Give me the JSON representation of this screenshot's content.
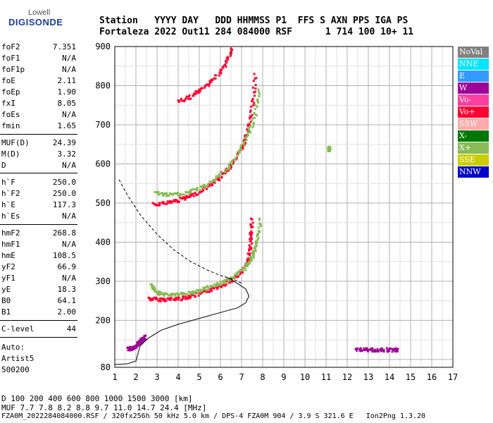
{
  "logo": {
    "top": "Lowell",
    "main": "DIGISONDE"
  },
  "header": {
    "line1": "Station   YYYY DAY   DDD HHMMSS P1  FFS S AXN PPS IGA PS",
    "line2": "Fortaleza 2022 Out11 284 084000 RSF      1 714 100 10+ 11"
  },
  "params": [
    {
      "k": "foF2",
      "v": "7.351"
    },
    {
      "k": "foF1",
      "v": "N/A"
    },
    {
      "k": "foF1p",
      "v": "N/A"
    },
    {
      "k": "foE",
      "v": "2.11"
    },
    {
      "k": "foEp",
      "v": "1.90"
    },
    {
      "k": "fxI",
      "v": "8.05"
    },
    {
      "k": "foEs",
      "v": "N/A"
    },
    {
      "k": "fmin",
      "v": "1.65"
    },
    {
      "k": "MUF(D)",
      "v": "24.39"
    },
    {
      "k": "M(D)",
      "v": "3.32"
    },
    {
      "k": "D",
      "v": "N/A"
    },
    {
      "k": "h`F",
      "v": "250.0"
    },
    {
      "k": "h`F2",
      "v": "250.0"
    },
    {
      "k": "h`E",
      "v": "117.3"
    },
    {
      "k": "h`Es",
      "v": "N/A"
    },
    {
      "k": "hmF2",
      "v": "268.8"
    },
    {
      "k": "hmF1",
      "v": "N/A"
    },
    {
      "k": "hmE",
      "v": "108.5"
    },
    {
      "k": "yF2",
      "v": "66.9"
    },
    {
      "k": "yF1",
      "v": "N/A"
    },
    {
      "k": "yE",
      "v": "18.3"
    },
    {
      "k": "B0",
      "v": "64.1"
    },
    {
      "k": "B1",
      "v": "2.00"
    },
    {
      "k": "C-level",
      "v": "44"
    }
  ],
  "auto": {
    "line1": "Auto:",
    "line2": "Artist5",
    "line3": "500200"
  },
  "legend": [
    {
      "label": "NoVal",
      "color": "#808080"
    },
    {
      "label": "NNE",
      "color": "#00e5ff"
    },
    {
      "label": "E",
      "color": "#3399ff"
    },
    {
      "label": "W",
      "color": "#a0009a"
    },
    {
      "label": "Vo-",
      "color": "#ff3f9f"
    },
    {
      "label": "Vo+",
      "color": "#ff0033"
    },
    {
      "label": "SSW",
      "color": "#ffaaaa"
    },
    {
      "label": "X-",
      "color": "#007700"
    },
    {
      "label": "X+",
      "color": "#88bb55"
    },
    {
      "label": "SSE",
      "color": "#cccc00"
    },
    {
      "label": "NNW",
      "color": "#0000cc"
    }
  ],
  "bottom": {
    "row1": "D    100  200  400  600  800 1000 1500 3000 [km]",
    "row2": "MUF  7.7  7.8  8.2  8.8  9.7 11.0 14.7 24.4 [MHz]"
  },
  "footer": "FZA0M_2022284084000.RSF / 320fx256h 50 kHz 5.0 km / DPS-4 FZA0M 904 / 3.9 S 321.6 E   Ion2Png 1.3.20",
  "chart_data": {
    "type": "scatter",
    "xlim": [
      1,
      17
    ],
    "ylim": [
      80,
      900
    ],
    "xticks": [
      1,
      2,
      3,
      4,
      5,
      6,
      7,
      8,
      9,
      10,
      11,
      12,
      13,
      14,
      15,
      16,
      17
    ],
    "yticks": [
      80,
      200,
      300,
      400,
      500,
      600,
      700,
      800,
      900
    ],
    "grid": true,
    "series": [
      {
        "trace": "F2 o-mode",
        "color": "#ff0033",
        "points": [
          [
            2.6,
            258
          ],
          [
            3.0,
            256
          ],
          [
            3.5,
            256
          ],
          [
            4.0,
            258
          ],
          [
            4.5,
            263
          ],
          [
            5.0,
            270
          ],
          [
            5.5,
            280
          ],
          [
            6.0,
            292
          ],
          [
            6.5,
            305
          ],
          [
            6.9,
            322
          ],
          [
            7.2,
            345
          ],
          [
            7.35,
            380
          ],
          [
            7.4,
            420
          ],
          [
            7.45,
            460
          ]
        ]
      },
      {
        "trace": "F2 x-mode",
        "color": "#88bb55",
        "points": [
          [
            2.7,
            292
          ],
          [
            2.9,
            275
          ],
          [
            3.2,
            270
          ],
          [
            3.7,
            268
          ],
          [
            4.2,
            270
          ],
          [
            4.7,
            274
          ],
          [
            5.2,
            282
          ],
          [
            5.7,
            292
          ],
          [
            6.2,
            303
          ],
          [
            6.7,
            318
          ],
          [
            7.1,
            335
          ],
          [
            7.4,
            360
          ],
          [
            7.6,
            385
          ],
          [
            7.75,
            420
          ],
          [
            7.85,
            460
          ]
        ]
      },
      {
        "trace": "F2 2nd multiple",
        "color": "#ff0033",
        "points": [
          [
            2.8,
            500
          ],
          [
            3.3,
            502
          ],
          [
            3.8,
            507
          ],
          [
            4.3,
            515
          ],
          [
            4.8,
            526
          ],
          [
            5.3,
            542
          ],
          [
            5.8,
            562
          ],
          [
            6.3,
            588
          ],
          [
            6.8,
            625
          ],
          [
            7.1,
            660
          ],
          [
            7.3,
            700
          ],
          [
            7.5,
            760
          ],
          [
            7.6,
            830
          ]
        ]
      },
      {
        "trace": "F2 2nd multiple x",
        "color": "#88bb55",
        "points": [
          [
            2.9,
            528
          ],
          [
            3.4,
            523
          ],
          [
            4.0,
            525
          ],
          [
            4.6,
            532
          ],
          [
            5.2,
            545
          ],
          [
            5.8,
            568
          ],
          [
            6.4,
            598
          ],
          [
            6.9,
            635
          ],
          [
            7.3,
            680
          ],
          [
            7.6,
            730
          ],
          [
            7.8,
            790
          ]
        ]
      },
      {
        "trace": "F2 3rd multiple",
        "color": "#ff0033",
        "points": [
          [
            4.0,
            762
          ],
          [
            4.5,
            772
          ],
          [
            5.0,
            790
          ],
          [
            5.5,
            812
          ],
          [
            6.0,
            840
          ],
          [
            6.3,
            870
          ],
          [
            6.5,
            895
          ]
        ]
      },
      {
        "trace": "E layer",
        "color": "#a0009a",
        "points": [
          [
            1.6,
            130
          ],
          [
            1.8,
            131
          ],
          [
            2.0,
            134
          ],
          [
            2.1,
            145
          ],
          [
            2.2,
            150
          ],
          [
            2.3,
            155
          ],
          [
            2.4,
            160
          ]
        ]
      },
      {
        "trace": "Es interference",
        "color": "#a0009a",
        "points": [
          [
            12.4,
            127
          ],
          [
            12.8,
            127
          ],
          [
            13.2,
            127
          ],
          [
            13.6,
            127
          ],
          [
            14.0,
            127
          ],
          [
            14.4,
            127
          ]
        ]
      },
      {
        "trace": "spur",
        "color": "#88bb55",
        "points": [
          [
            11.1,
            643
          ],
          [
            11.1,
            635
          ]
        ]
      }
    ],
    "profile_solid": [
      [
        1.0,
        87
      ],
      [
        1.6,
        89
      ],
      [
        2.0,
        96
      ],
      [
        2.2,
        135
      ],
      [
        2.6,
        155
      ],
      [
        3.2,
        175
      ],
      [
        4.0,
        190
      ],
      [
        5.0,
        205
      ],
      [
        6.0,
        220
      ],
      [
        6.8,
        232
      ],
      [
        7.2,
        245
      ],
      [
        7.35,
        262
      ],
      [
        7.2,
        280
      ],
      [
        6.5,
        305
      ],
      [
        6.2,
        312
      ]
    ],
    "profile_dashed": [
      [
        1.2,
        560
      ],
      [
        1.6,
        520
      ],
      [
        2.2,
        470
      ],
      [
        3.0,
        420
      ],
      [
        3.8,
        380
      ],
      [
        4.6,
        350
      ],
      [
        5.4,
        328
      ],
      [
        6.0,
        315
      ],
      [
        6.6,
        305
      ],
      [
        7.0,
        295
      ]
    ]
  }
}
